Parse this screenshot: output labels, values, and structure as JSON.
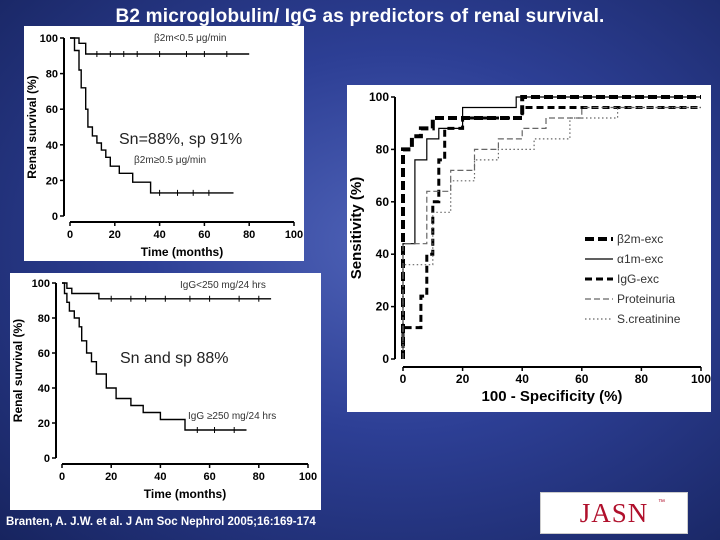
{
  "slide": {
    "title": "B2 microglobulin/ IgG as predictors of renal survival.",
    "citation": "Branten, A. J.W. et al. J Am Soc Nephrol 2005;16:169-174",
    "logo": {
      "text": "JASN",
      "mark": "™"
    }
  },
  "chart_data": [
    {
      "type": "line",
      "subtype": "kaplan-meier",
      "xlabel": "Time (months)",
      "ylabel": "Renal survival (%)",
      "xlim": [
        0,
        100
      ],
      "ylim": [
        0,
        100
      ],
      "xticks": [
        "0",
        "20",
        "40",
        "60",
        "80",
        "100"
      ],
      "yticks": [
        "0",
        "20",
        "40",
        "60",
        "80",
        "100"
      ],
      "annotation": "Sn=88%, sp 91%",
      "series": [
        {
          "name": "β2m<0.5 μg/min",
          "color": "#000000",
          "x": [
            0,
            4,
            4,
            7,
            7,
            80
          ],
          "y": [
            100,
            100,
            97,
            97,
            91,
            91
          ]
        },
        {
          "name": "β2m≥0.5 μg/min",
          "color": "#000000",
          "x": [
            0,
            2,
            2,
            4,
            4,
            5,
            5,
            7,
            7,
            8,
            8,
            10,
            10,
            12,
            12,
            14,
            14,
            16,
            16,
            18,
            18,
            22,
            22,
            28,
            28,
            36,
            36,
            73
          ],
          "y": [
            100,
            100,
            93,
            93,
            82,
            82,
            72,
            72,
            60,
            60,
            50,
            50,
            45,
            45,
            41,
            41,
            37,
            37,
            33,
            33,
            28,
            28,
            24,
            24,
            19,
            19,
            13,
            13
          ]
        }
      ]
    },
    {
      "type": "line",
      "subtype": "kaplan-meier",
      "xlabel": "Time (months)",
      "ylabel": "Renal survival (%)",
      "xlim": [
        0,
        100
      ],
      "ylim": [
        0,
        100
      ],
      "xticks": [
        "0",
        "20",
        "40",
        "60",
        "80",
        "100"
      ],
      "yticks": [
        "0",
        "20",
        "40",
        "60",
        "80",
        "100"
      ],
      "annotation": "Sn and sp 88%",
      "series": [
        {
          "name": "IgG<250 mg/24 hrs",
          "color": "#000000",
          "x": [
            0,
            2,
            2,
            4,
            4,
            15,
            15,
            85
          ],
          "y": [
            100,
            100,
            97,
            97,
            94,
            94,
            91,
            91
          ]
        },
        {
          "name": "IgG ≥250 mg/24 hrs",
          "color": "#000000",
          "x": [
            0,
            1,
            1,
            2,
            2,
            3,
            3,
            5,
            5,
            7,
            7,
            8,
            8,
            10,
            10,
            12,
            12,
            14,
            14,
            18,
            18,
            22,
            22,
            28,
            28,
            33,
            33,
            40,
            40,
            50,
            50,
            75
          ],
          "y": [
            100,
            100,
            94,
            94,
            89,
            89,
            84,
            84,
            80,
            80,
            75,
            75,
            67,
            67,
            60,
            60,
            55,
            55,
            48,
            48,
            40,
            40,
            34,
            34,
            30,
            30,
            26,
            26,
            22,
            22,
            16,
            16
          ]
        }
      ]
    },
    {
      "type": "line",
      "subtype": "roc",
      "xlabel": "100 - Specificity (%)",
      "ylabel": "Sensitivity (%)",
      "xlim": [
        0,
        100
      ],
      "ylim": [
        0,
        100
      ],
      "xticks": [
        "0",
        "20",
        "40",
        "60",
        "80",
        "100"
      ],
      "yticks": [
        "0",
        "20",
        "40",
        "60",
        "80",
        "100"
      ],
      "legend": "right",
      "series": [
        {
          "name": "β2m-exc",
          "color": "#000000",
          "style": "bold-dash",
          "x": [
            0,
            0,
            3,
            3,
            6,
            6,
            10,
            10,
            40,
            40,
            100
          ],
          "y": [
            0,
            80,
            80,
            85,
            85,
            88,
            88,
            92,
            92,
            100,
            100
          ]
        },
        {
          "name": "α1m-exc",
          "color": "#000000",
          "style": "solid",
          "x": [
            0,
            0,
            4,
            4,
            8,
            8,
            12,
            12,
            20,
            20,
            38,
            38,
            100
          ],
          "y": [
            0,
            44,
            44,
            76,
            76,
            84,
            84,
            88,
            88,
            96,
            96,
            100,
            100
          ]
        },
        {
          "name": "IgG-exc",
          "color": "#000000",
          "style": "heavy-dash",
          "x": [
            0,
            0,
            6,
            6,
            8,
            8,
            10,
            10,
            12,
            12,
            14,
            14,
            20,
            20,
            40,
            40,
            100
          ],
          "y": [
            0,
            12,
            12,
            24,
            24,
            40,
            40,
            60,
            60,
            76,
            76,
            88,
            88,
            92,
            92,
            96,
            96
          ]
        },
        {
          "name": "Proteinuria",
          "color": "#666666",
          "style": "dash",
          "x": [
            0,
            0,
            8,
            8,
            16,
            16,
            24,
            24,
            32,
            32,
            40,
            40,
            48,
            48,
            60,
            60,
            100
          ],
          "y": [
            0,
            44,
            44,
            64,
            64,
            72,
            72,
            80,
            80,
            84,
            84,
            88,
            88,
            92,
            92,
            96,
            96
          ]
        },
        {
          "name": "S.creatinine",
          "color": "#666666",
          "style": "dot",
          "x": [
            0,
            0,
            10,
            10,
            16,
            16,
            24,
            24,
            32,
            32,
            44,
            44,
            56,
            56,
            72,
            72,
            100
          ],
          "y": [
            0,
            36,
            36,
            56,
            56,
            68,
            68,
            76,
            76,
            80,
            80,
            84,
            84,
            92,
            92,
            96,
            96
          ]
        }
      ]
    }
  ]
}
